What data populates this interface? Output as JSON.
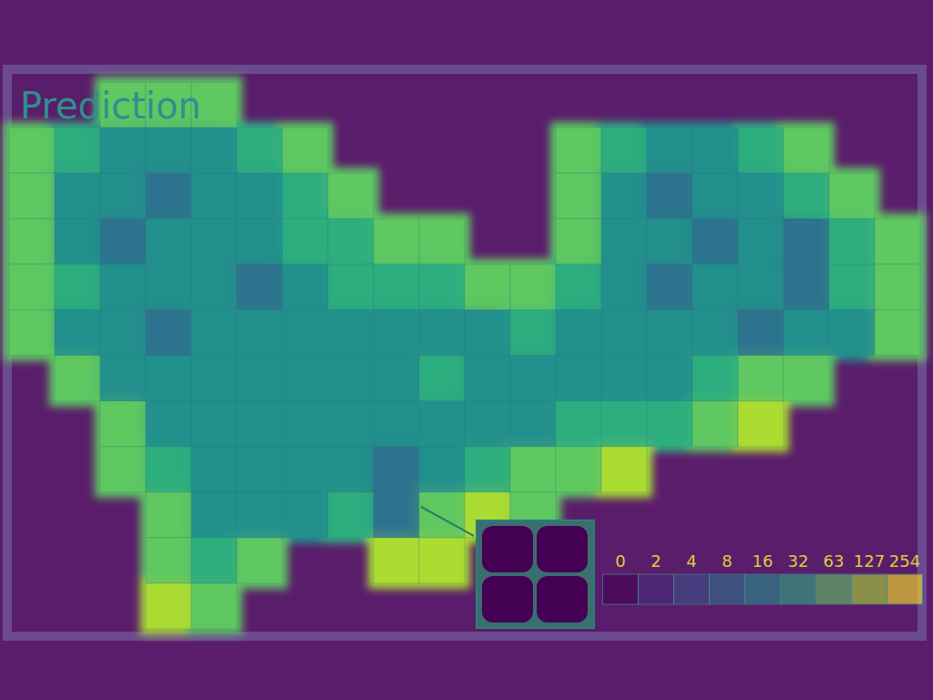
{
  "chart_data": {
    "type": "heatmap",
    "title": "Prediction",
    "tick_labels": false,
    "color_range": [
      0,
      254
    ],
    "color_ticks": [
      0,
      2,
      4,
      8,
      16,
      32,
      63,
      127,
      254
    ],
    "cells": [
      [
        null,
        null,
        63,
        63,
        63,
        null,
        null,
        null,
        null,
        null,
        null,
        null,
        null,
        null,
        null,
        null,
        null,
        null,
        null,
        null
      ],
      [
        63,
        32,
        16,
        16,
        16,
        32,
        63,
        null,
        null,
        null,
        null,
        null,
        63,
        32,
        16,
        16,
        32,
        63,
        null,
        null
      ],
      [
        63,
        16,
        16,
        8,
        16,
        16,
        32,
        63,
        null,
        null,
        null,
        null,
        63,
        16,
        8,
        16,
        16,
        32,
        63,
        null
      ],
      [
        63,
        16,
        8,
        16,
        16,
        16,
        32,
        32,
        63,
        63,
        null,
        null,
        63,
        16,
        16,
        8,
        16,
        8,
        32,
        63
      ],
      [
        63,
        32,
        16,
        16,
        16,
        8,
        16,
        32,
        32,
        32,
        63,
        63,
        32,
        16,
        8,
        16,
        16,
        8,
        32,
        63
      ],
      [
        63,
        16,
        16,
        8,
        16,
        16,
        16,
        16,
        16,
        16,
        16,
        32,
        16,
        16,
        16,
        16,
        8,
        16,
        16,
        63
      ],
      [
        null,
        63,
        16,
        16,
        16,
        16,
        16,
        16,
        16,
        32,
        16,
        16,
        16,
        16,
        16,
        32,
        63,
        63,
        null,
        null
      ],
      [
        null,
        null,
        63,
        16,
        16,
        16,
        16,
        16,
        16,
        16,
        16,
        16,
        32,
        32,
        32,
        63,
        127,
        null,
        null,
        null
      ],
      [
        null,
        null,
        63,
        32,
        16,
        16,
        16,
        16,
        8,
        16,
        32,
        63,
        63,
        127,
        null,
        null,
        null,
        null,
        null,
        null
      ],
      [
        null,
        null,
        null,
        63,
        16,
        16,
        16,
        32,
        8,
        63,
        127,
        63,
        null,
        null,
        null,
        null,
        null,
        null,
        null,
        null
      ],
      [
        null,
        null,
        null,
        63,
        32,
        63,
        null,
        null,
        127,
        127,
        null,
        null,
        null,
        null,
        null,
        null,
        null,
        null,
        null,
        null
      ],
      [
        null,
        null,
        null,
        127,
        63,
        null,
        null,
        null,
        null,
        null,
        null,
        null,
        null,
        null,
        null,
        null,
        null,
        null,
        null,
        null
      ]
    ],
    "inset_cells": [
      [
        0,
        0
      ],
      [
        0,
        0
      ]
    ]
  }
}
